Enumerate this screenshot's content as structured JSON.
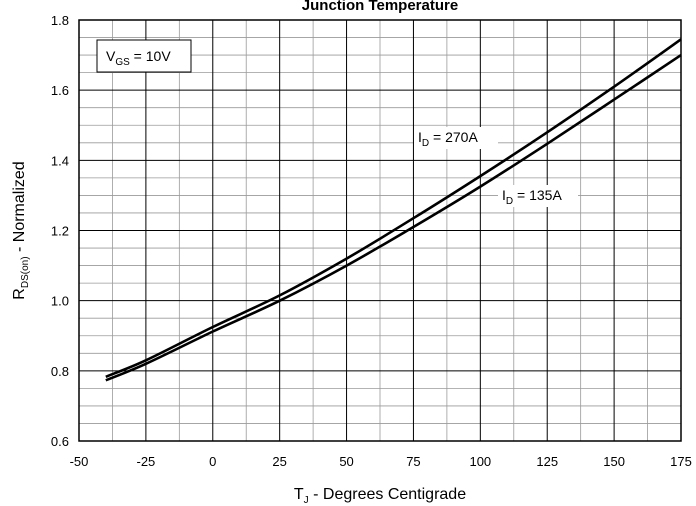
{
  "chart_data": {
    "type": "line",
    "title": "Junction Temperature",
    "xlabel": {
      "main": "T",
      "sub": "J",
      "rest": " - Degrees Centigrade"
    },
    "ylabel": {
      "main": "R",
      "sub": "DS(on)",
      "rest": " - Normalized"
    },
    "xlim": [
      -50,
      175
    ],
    "ylim": [
      0.6,
      1.8
    ],
    "xticks": [
      -50,
      -25,
      0,
      25,
      50,
      75,
      100,
      125,
      150,
      175
    ],
    "xtick_labels": [
      "-50",
      "-25",
      "0",
      "25",
      "50",
      "75",
      "100",
      "125",
      "150",
      "175"
    ],
    "yticks": [
      0.6,
      0.8,
      1.0,
      1.2,
      1.4,
      1.6,
      1.8
    ],
    "ytick_labels": [
      "0.6",
      "0.8",
      "1.0",
      "1.2",
      "1.4",
      "1.6",
      "1.8"
    ],
    "grid": true,
    "annotation_box": {
      "main": "V",
      "sub": "GS",
      "rest": " = 10V"
    },
    "series": [
      {
        "label": {
          "main": "I",
          "sub": "D",
          "rest": " = 270A"
        },
        "x": [
          -40,
          -25,
          0,
          25,
          50,
          75,
          100,
          125,
          150,
          175
        ],
        "y": [
          0.783,
          0.83,
          0.925,
          1.015,
          1.12,
          1.235,
          1.355,
          1.48,
          1.61,
          1.745
        ]
      },
      {
        "label": {
          "main": "I",
          "sub": "D",
          "rest": " = 135A"
        },
        "x": [
          -40,
          -25,
          0,
          25,
          50,
          75,
          100,
          125,
          150,
          175
        ],
        "y": [
          0.773,
          0.82,
          0.912,
          1.0,
          1.1,
          1.21,
          1.325,
          1.447,
          1.573,
          1.7
        ]
      }
    ]
  }
}
